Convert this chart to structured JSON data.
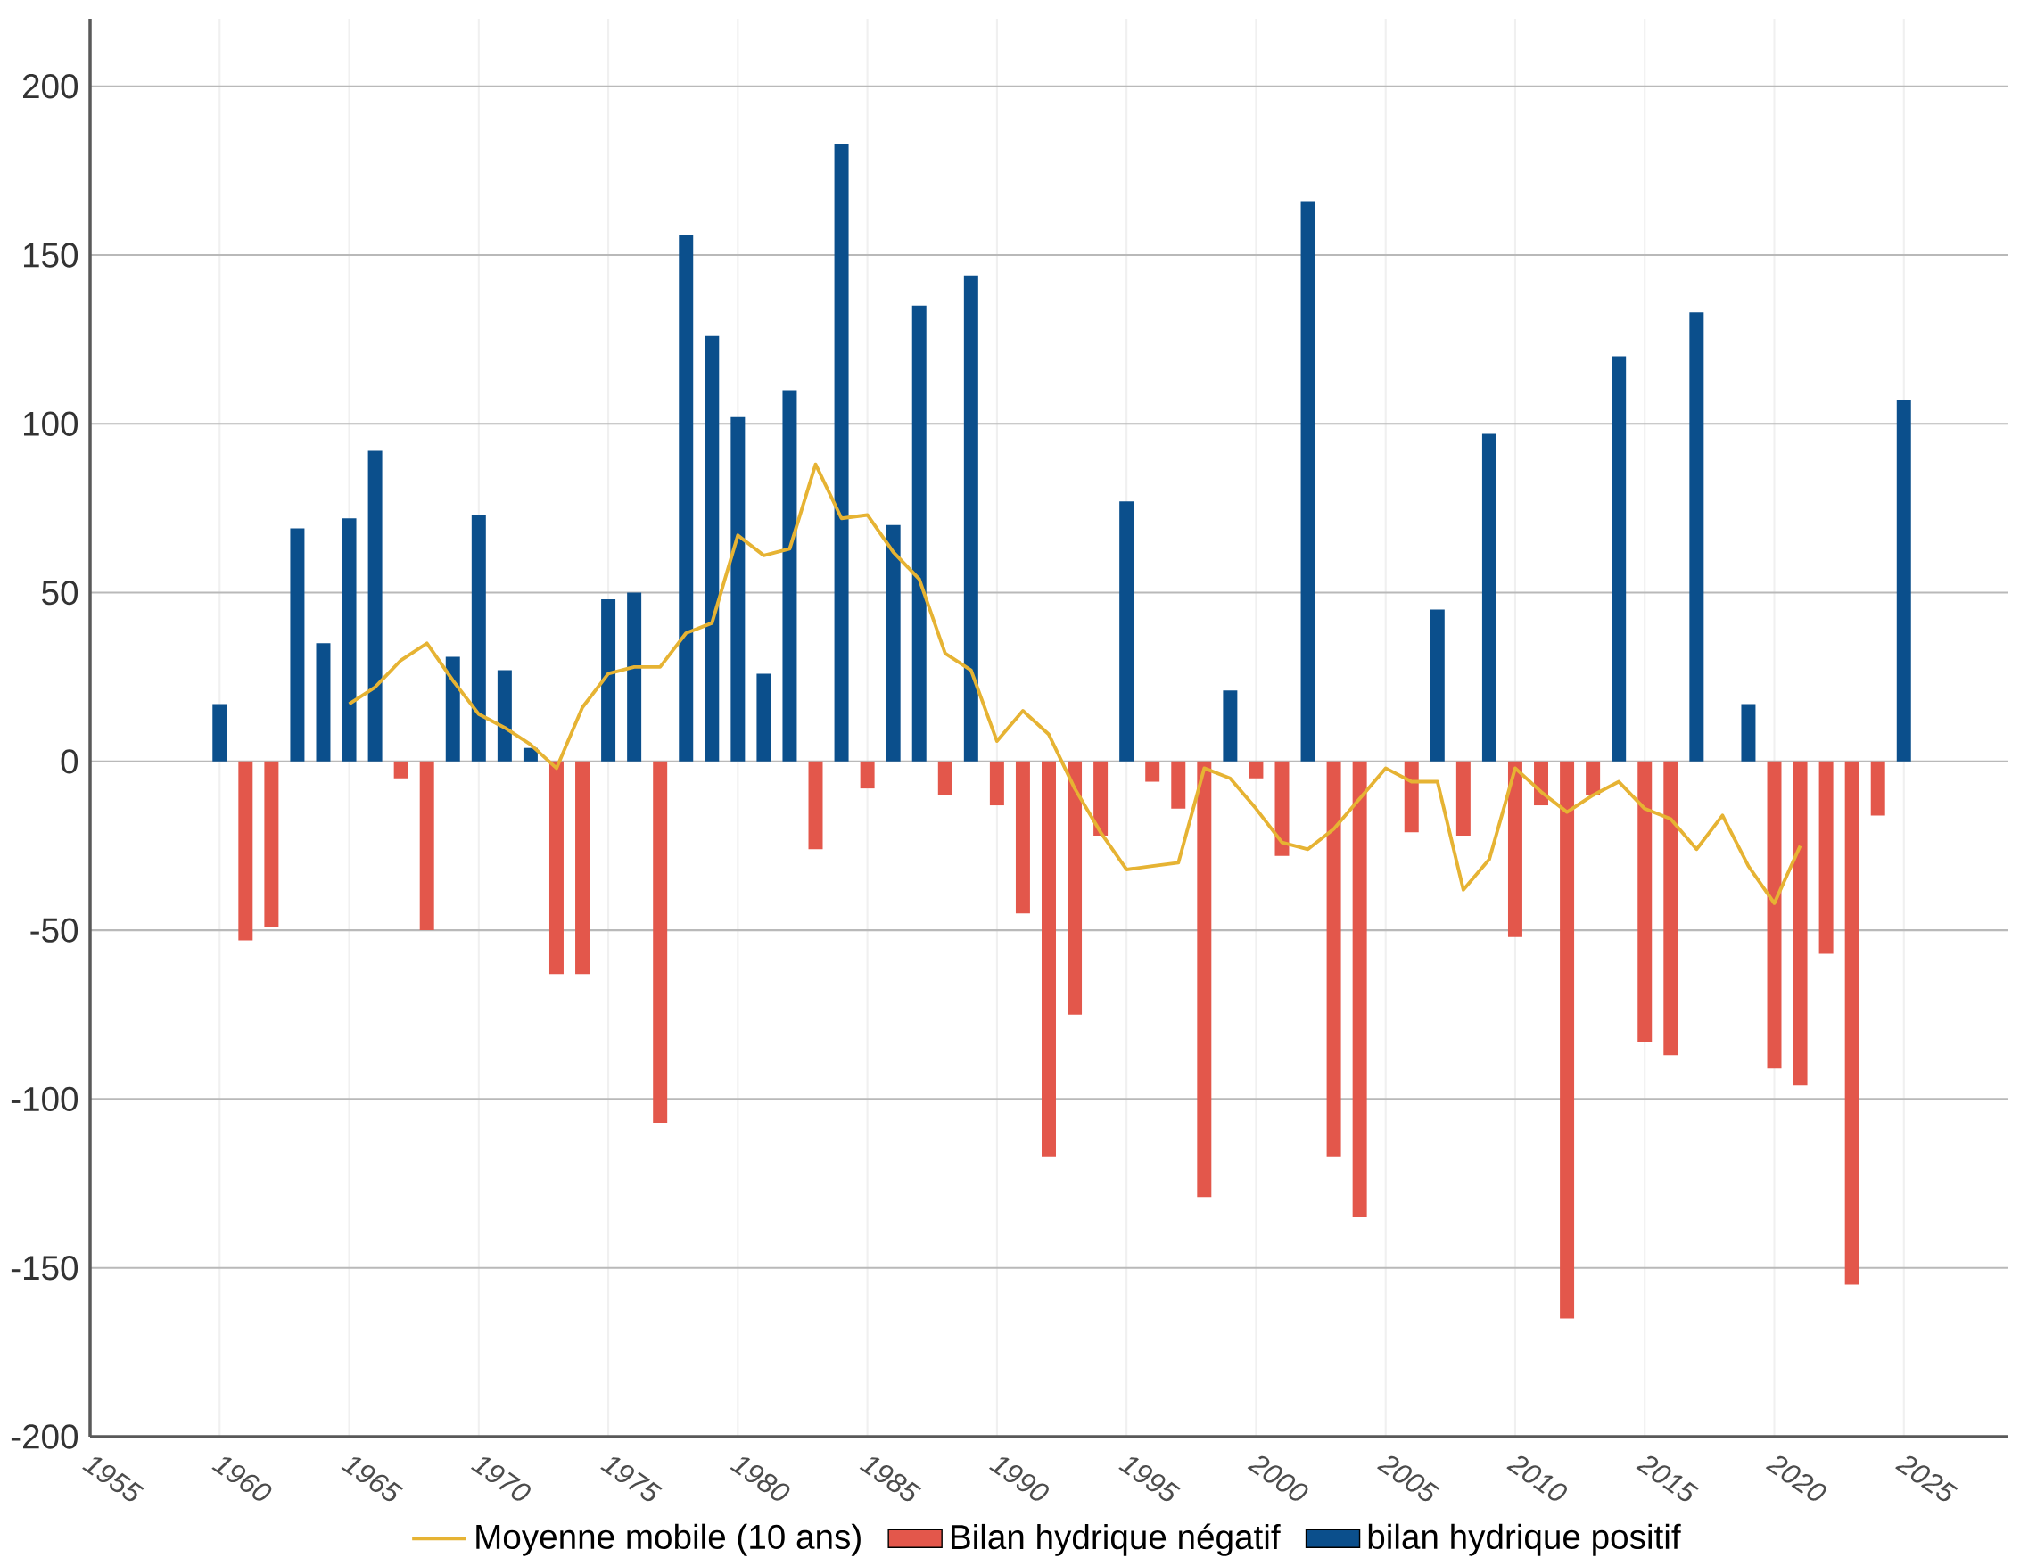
{
  "chart_data": {
    "type": "bar",
    "xlim": [
      1955,
      2029
    ],
    "xticks": [
      1955,
      1960,
      1965,
      1970,
      1975,
      1980,
      1985,
      1990,
      1995,
      2000,
      2005,
      2010,
      2015,
      2020,
      2025
    ],
    "ylim": [
      -200,
      220
    ],
    "yticks": [
      -200,
      -150,
      -100,
      -50,
      0,
      50,
      100,
      150,
      200
    ],
    "grid": true,
    "legend": "bottom",
    "marker": "none",
    "series": [
      {
        "name": "Moyenne mobile (10 ans)",
        "type": "line",
        "color": "#e6b333",
        "x": [
          1965,
          1966,
          1967,
          1968,
          1969,
          1970,
          1971,
          1972,
          1973,
          1974,
          1975,
          1976,
          1977,
          1978,
          1979,
          1980,
          1981,
          1982,
          1983,
          1984,
          1985,
          1986,
          1987,
          1988,
          1989,
          1990,
          1991,
          1992,
          1993,
          1994,
          1995,
          1996,
          1997,
          1998,
          1999,
          2000,
          2001,
          2002,
          2003,
          2004,
          2005,
          2006,
          2007,
          2008,
          2009,
          2010,
          2011,
          2012,
          2013,
          2014,
          2015,
          2016,
          2017,
          2018,
          2019,
          2020,
          2021
        ],
        "values": [
          17,
          22,
          30,
          35,
          24,
          14,
          10,
          5,
          -2,
          16,
          26,
          28,
          28,
          38,
          41,
          67,
          61,
          63,
          88,
          72,
          73,
          62,
          54,
          32,
          27,
          6,
          15,
          8,
          -8,
          -21,
          -32,
          -31,
          -30,
          -2,
          -5,
          -14,
          -24,
          -26,
          -20,
          -11,
          -2,
          -6,
          -6,
          -38,
          -29,
          -2,
          -9,
          -15,
          -10,
          -6,
          -14,
          -17,
          -26,
          -16,
          -31,
          -42,
          -25
        ]
      },
      {
        "name": "Bilan hydrique négatif",
        "type": "bar",
        "color": "#e3574b",
        "x": [
          1961,
          1962,
          1967,
          1968,
          1973,
          1974,
          1977,
          1983,
          1985,
          1988,
          1990,
          1991,
          1992,
          1993,
          1994,
          1996,
          1997,
          1998,
          2000,
          2001,
          2003,
          2004,
          2006,
          2008,
          2010,
          2011,
          2012,
          2013,
          2015,
          2016,
          2020,
          2021,
          2022,
          2023,
          2024
        ],
        "values": [
          -53,
          -49,
          -5,
          -50,
          -63,
          -63,
          -107,
          -26,
          -8,
          -10,
          -13,
          -45,
          -117,
          -75,
          -22,
          -6,
          -14,
          -129,
          -5,
          -28,
          -117,
          -135,
          -21,
          -22,
          -52,
          -13,
          -165,
          -10,
          -83,
          -87,
          -91,
          -96,
          -57,
          -155,
          -16
        ]
      },
      {
        "name": "bilan hydrique positif",
        "type": "bar",
        "color": "#0b4f8c",
        "x": [
          1960,
          1963,
          1964,
          1965,
          1966,
          1969,
          1970,
          1971,
          1972,
          1975,
          1976,
          1978,
          1979,
          1980,
          1981,
          1982,
          1984,
          1986,
          1987,
          1989,
          1995,
          1999,
          2002,
          2007,
          2009,
          2014,
          2017,
          2019,
          2025
        ],
        "values": [
          17,
          69,
          35,
          72,
          92,
          31,
          73,
          27,
          4,
          48,
          50,
          156,
          126,
          102,
          26,
          110,
          183,
          70,
          135,
          144,
          77,
          21,
          166,
          45,
          97,
          120,
          133,
          17,
          107
        ]
      }
    ]
  }
}
